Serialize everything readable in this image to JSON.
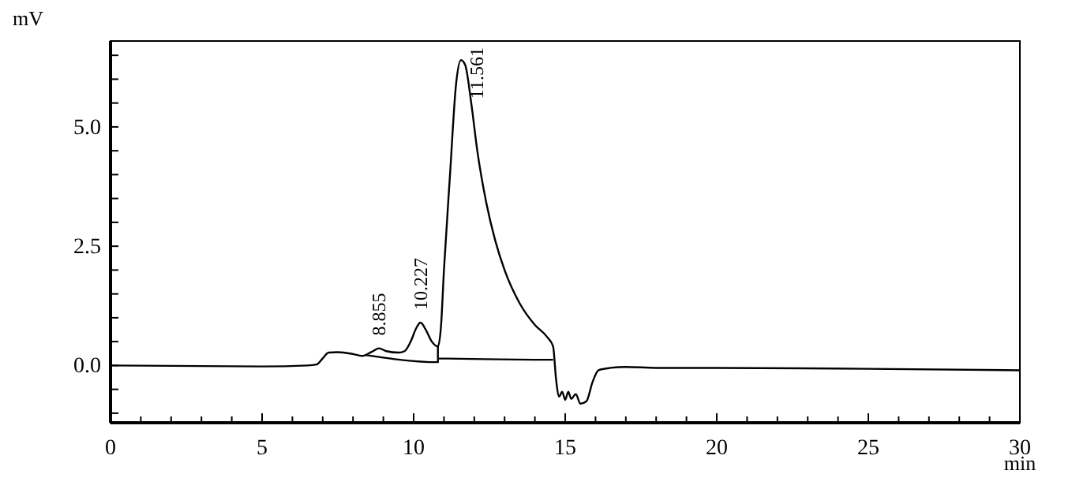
{
  "chart_data": {
    "type": "line",
    "xlabel": "min",
    "ylabel": "mV",
    "xlim": [
      0,
      30
    ],
    "ylim": [
      -1.2,
      6.8
    ],
    "xticks": [
      0,
      {
        "value": 1,
        "label": null
      },
      {
        "value": 2,
        "label": null
      },
      {
        "value": 3,
        "label": null
      },
      {
        "value": 4,
        "label": null
      },
      5,
      {
        "value": 6,
        "label": null
      },
      {
        "value": 7,
        "label": null
      },
      {
        "value": 8,
        "label": null
      },
      {
        "value": 9,
        "label": null
      },
      10,
      {
        "value": 11,
        "label": null
      },
      {
        "value": 12,
        "label": null
      },
      {
        "value": 13,
        "label": null
      },
      {
        "value": 14,
        "label": null
      },
      15,
      {
        "value": 16,
        "label": null
      },
      {
        "value": 17,
        "label": null
      },
      {
        "value": 18,
        "label": null
      },
      {
        "value": 19,
        "label": null
      },
      20,
      {
        "value": 21,
        "label": null
      },
      {
        "value": 22,
        "label": null
      },
      {
        "value": 23,
        "label": null
      },
      {
        "value": 24,
        "label": null
      },
      25,
      {
        "value": 26,
        "label": null
      },
      {
        "value": 27,
        "label": null
      },
      {
        "value": 28,
        "label": null
      },
      {
        "value": 29,
        "label": null
      },
      30
    ],
    "yticks": [
      {
        "value": -1,
        "label": null
      },
      {
        "value": -0.5,
        "label": null
      },
      {
        "value": 0,
        "label": "0.0"
      },
      {
        "value": 0.5,
        "label": null
      },
      {
        "value": 1,
        "label": null
      },
      {
        "value": 1.5,
        "label": null
      },
      {
        "value": 2,
        "label": null
      },
      {
        "value": 2.5,
        "label": "2.5"
      },
      {
        "value": 3,
        "label": null
      },
      {
        "value": 3.5,
        "label": null
      },
      {
        "value": 4,
        "label": null
      },
      {
        "value": 4.5,
        "label": null
      },
      {
        "value": 5,
        "label": "5.0"
      },
      {
        "value": 5.5,
        "label": null
      },
      {
        "value": 6,
        "label": null
      },
      {
        "value": 6.5,
        "label": null
      }
    ],
    "grid": false,
    "marker": "none",
    "line_style": "solid",
    "series": [
      {
        "color": "#000000",
        "x": [
          0,
          5,
          6.5,
          6.8,
          7.0,
          7.2,
          7.5,
          8.0,
          8.3,
          8.6,
          8.855,
          9.1,
          9.5,
          9.7,
          9.9,
          10.1,
          10.227,
          10.4,
          10.6,
          10.8,
          10.9,
          11.0,
          11.2,
          11.4,
          11.561,
          11.7,
          11.9,
          12.1,
          12.4,
          12.7,
          13.0,
          13.5,
          14.0,
          14.4,
          14.6,
          14.7,
          14.8,
          14.9,
          15.0,
          15.1,
          15.2,
          15.35,
          15.5,
          15.7,
          15.9,
          16.1,
          16.5,
          17.0,
          18.0,
          20,
          25,
          30
        ],
        "values": [
          0,
          -0.02,
          0,
          0.02,
          0.15,
          0.27,
          0.28,
          0.24,
          0.2,
          0.28,
          0.36,
          0.3,
          0.27,
          0.3,
          0.5,
          0.8,
          0.9,
          0.75,
          0.5,
          0.4,
          0.8,
          2.0,
          4.0,
          5.9,
          6.4,
          6.3,
          5.5,
          4.5,
          3.4,
          2.6,
          2.0,
          1.3,
          0.85,
          0.6,
          0.4,
          -0.3,
          -0.65,
          -0.55,
          -0.72,
          -0.55,
          -0.7,
          -0.6,
          -0.8,
          -0.75,
          -0.35,
          -0.1,
          -0.05,
          -0.03,
          -0.05,
          -0.05,
          -0.07,
          -0.1
        ]
      },
      {
        "color": "#000000",
        "x": [
          8.4,
          10.8,
          10.8,
          10.8,
          14.6
        ],
        "values": [
          0.22,
          0.07,
          0.4,
          0.15,
          0.12
        ]
      }
    ],
    "annotations": [
      {
        "text": "8.855",
        "x": 8.855,
        "y": 0.36
      },
      {
        "text": "10.227",
        "x": 10.227,
        "y": 0.9
      },
      {
        "text": "11.561",
        "x": 11.561,
        "y": 6.4
      }
    ]
  }
}
